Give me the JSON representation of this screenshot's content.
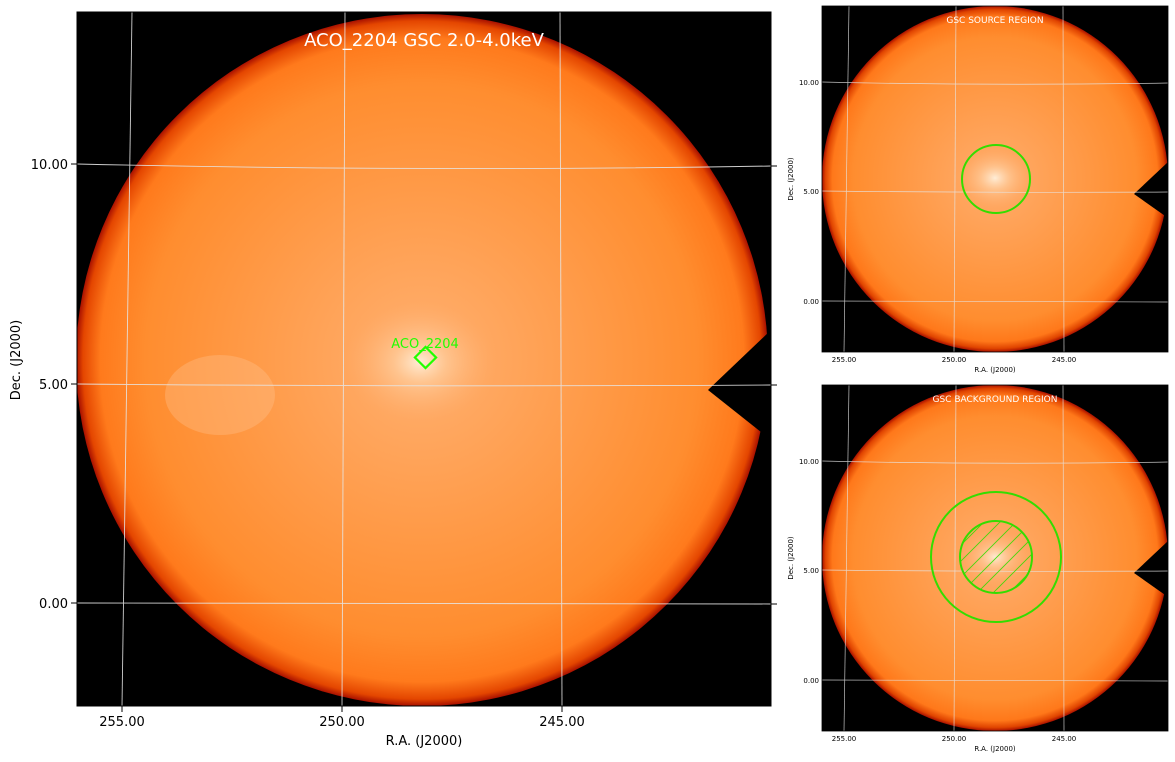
{
  "main_panel": {
    "title": "ACO_2204 GSC 2.0-4.0keV",
    "source_label": "ACO_2204",
    "xlabel": "R.A. (J2000)",
    "ylabel": "Dec. (J2000)",
    "x_ticks": [
      "255.00",
      "250.00",
      "245.00"
    ],
    "y_ticks": [
      "10.00",
      "5.00",
      "0.00"
    ]
  },
  "source_panel": {
    "title": "GSC SOURCE REGION",
    "xlabel": "R.A. (J2000)",
    "ylabel": "Dec. (J2000)",
    "x_ticks": [
      "255.00",
      "250.00",
      "245.00"
    ],
    "y_ticks": [
      "10.00",
      "5.00",
      "0.00"
    ]
  },
  "background_panel": {
    "title": "GSC BACKGROUND REGION",
    "xlabel": "R.A. (J2000)",
    "ylabel": "Dec. (J2000)",
    "x_ticks": [
      "255.00",
      "250.00",
      "245.00"
    ],
    "y_ticks": [
      "10.00",
      "5.00",
      "0.00"
    ]
  },
  "colors": {
    "field_orange": "#ff8a2a",
    "field_edge": "#c81e00",
    "background_black": "#000000",
    "region_green": "#33dd00",
    "source_marker_green": "#22ff00",
    "grid": "#e6e6e6",
    "title_text": "#ffffff"
  }
}
